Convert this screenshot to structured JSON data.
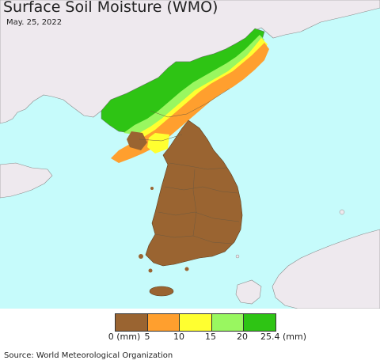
{
  "title": "Surface Soil Moisture (WMO)",
  "date": "May. 25, 2022",
  "source": "Source: World Meteorological Organization",
  "colors": {
    "sea": "#c6fbfb",
    "land_other": "#eee9ee",
    "border": "#7a7a7a"
  },
  "legend": {
    "bins": [
      {
        "color": "#9a6431"
      },
      {
        "color": "#ff9f2e"
      },
      {
        "color": "#ffff30"
      },
      {
        "color": "#99f760"
      },
      {
        "color": "#2ec414"
      }
    ],
    "tick_labels": [
      "0 (mm)",
      "5",
      "10",
      "15",
      "20",
      "25.4 (mm)"
    ]
  }
}
